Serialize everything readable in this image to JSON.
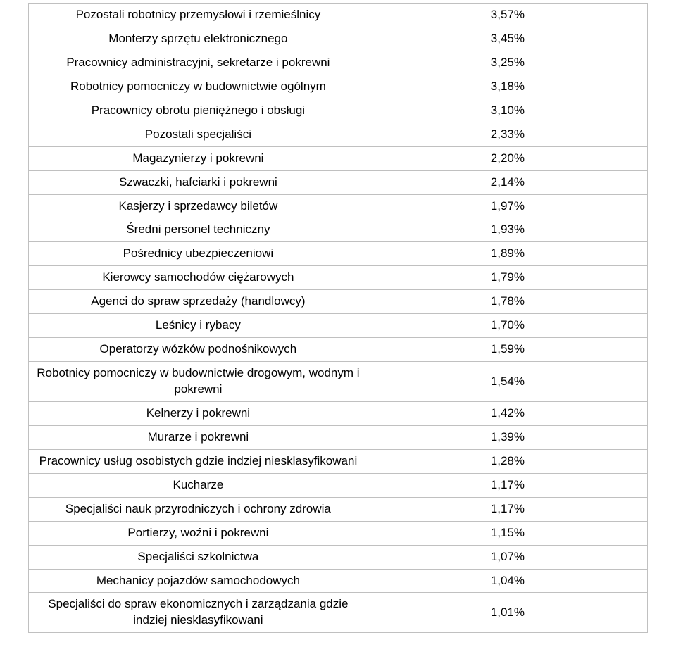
{
  "table": {
    "border_color": "#c0c0c0",
    "text_color": "#000000",
    "background_color": "#ffffff",
    "font_size_pt": 12,
    "rows": [
      {
        "label": "Pozostali robotnicy przemysłowi i rzemieślnicy",
        "value": "3,57%"
      },
      {
        "label": "Monterzy sprzętu elektronicznego",
        "value": "3,45%"
      },
      {
        "label": "Pracownicy administracyjni, sekretarze i pokrewni",
        "value": "3,25%"
      },
      {
        "label": "Robotnicy pomocniczy w budownictwie ogólnym",
        "value": "3,18%"
      },
      {
        "label": "Pracownicy obrotu pieniężnego i obsługi",
        "value": "3,10%"
      },
      {
        "label": "Pozostali specjaliści",
        "value": "2,33%"
      },
      {
        "label": "Magazynierzy i pokrewni",
        "value": "2,20%"
      },
      {
        "label": "Szwaczki, hafciarki i pokrewni",
        "value": "2,14%"
      },
      {
        "label": "Kasjerzy i sprzedawcy biletów",
        "value": "1,97%"
      },
      {
        "label": "Średni personel techniczny",
        "value": "1,93%"
      },
      {
        "label": "Pośrednicy ubezpieczeniowi",
        "value": "1,89%"
      },
      {
        "label": "Kierowcy samochodów ciężarowych",
        "value": "1,79%"
      },
      {
        "label": "Agenci do spraw sprzedaży (handlowcy)",
        "value": "1,78%"
      },
      {
        "label": "Leśnicy i rybacy",
        "value": "1,70%"
      },
      {
        "label": "Operatorzy wózków podnośnikowych",
        "value": "1,59%"
      },
      {
        "label": "Robotnicy pomocniczy w budownictwie drogowym, wodnym i pokrewni",
        "value": "1,54%"
      },
      {
        "label": "Kelnerzy i pokrewni",
        "value": "1,42%"
      },
      {
        "label": "Murarze i pokrewni",
        "value": "1,39%"
      },
      {
        "label": "Pracownicy usług osobistych gdzie indziej niesklasyfikowani",
        "value": "1,28%"
      },
      {
        "label": "Kucharze",
        "value": "1,17%"
      },
      {
        "label": "Specjaliści nauk przyrodniczych i ochrony zdrowia",
        "value": "1,17%"
      },
      {
        "label": "Portierzy, woźni i pokrewni",
        "value": "1,15%"
      },
      {
        "label": "Specjaliści szkolnictwa",
        "value": "1,07%"
      },
      {
        "label": "Mechanicy pojazdów samochodowych",
        "value": "1,04%"
      },
      {
        "label": "Specjaliści do spraw ekonomicznych i zarządzania gdzie indziej niesklasyfikowani",
        "value": "1,01%"
      }
    ]
  }
}
